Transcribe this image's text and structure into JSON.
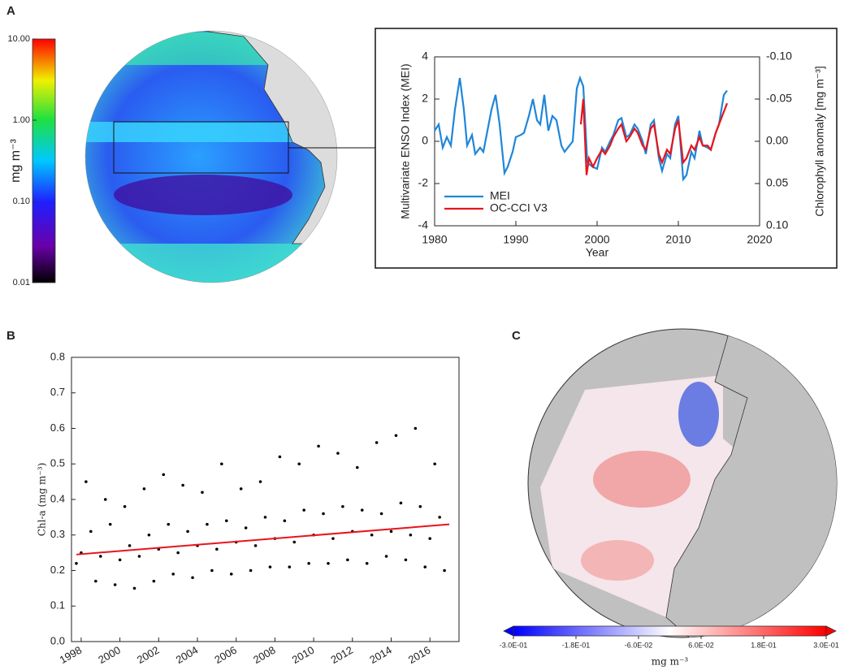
{
  "chart_data": [
    {
      "type": "colorbar",
      "panel": "A",
      "orientation": "vertical",
      "log": true,
      "label": "mg m⁻³",
      "lim": [
        0.01,
        10
      ],
      "ticks": [
        {
          "value": 10,
          "label": "10.00"
        },
        {
          "value": 1,
          "label": "1.00"
        },
        {
          "value": 0.1,
          "label": "0.10"
        },
        {
          "value": 0.01,
          "label": "0.01"
        }
      ]
    },
    {
      "type": "line",
      "xlabel": "Year",
      "ylabel": "Multivariate ENSO Index (MEI)",
      "y2label": "Chlorophyll anomaly [mg m⁻³]",
      "xlim": [
        1980,
        2020
      ],
      "xticks": [
        1980,
        1990,
        2000,
        2010,
        2020
      ],
      "ylim": [
        -4,
        4
      ],
      "yticks": [
        -4,
        -2,
        0,
        2,
        4
      ],
      "y2lim": [
        0.1,
        -0.1
      ],
      "y2ticks": [
        {
          "value": -0.1,
          "label": "-0.10"
        },
        {
          "value": -0.05,
          "label": "-0.05"
        },
        {
          "value": 0,
          "label": "0.00"
        },
        {
          "value": 0.05,
          "label": "0.05"
        },
        {
          "value": 0.1,
          "label": "0.10"
        }
      ],
      "legend": "lower left",
      "series": [
        {
          "name": "MEI",
          "color": "#1f86d9",
          "x": [
            1980,
            1980.5,
            1981,
            1981.5,
            1982,
            1982.5,
            1983.1,
            1983.6,
            1984,
            1984.6,
            1985,
            1985.6,
            1986,
            1986.5,
            1987,
            1987.5,
            1988,
            1988.6,
            1989,
            1989.6,
            1990,
            1990.6,
            1991,
            1991.6,
            1992.1,
            1992.6,
            1993,
            1993.5,
            1994,
            1994.5,
            1995,
            1995.6,
            1996,
            1996.6,
            1997,
            1997.5,
            1997.9,
            1998.3,
            1998.8,
            1999.4,
            2000,
            2000.6,
            2001,
            2001.6,
            2002,
            2002.6,
            2003,
            2003.6,
            2004,
            2004.6,
            2005,
            2005.6,
            2006,
            2006.6,
            2007,
            2007.6,
            2008,
            2008.6,
            2009,
            2009.6,
            2010,
            2010.6,
            2011,
            2011.6,
            2012,
            2012.6,
            2013,
            2013.6,
            2014,
            2014.6,
            2015,
            2015.6,
            2016
          ],
          "values": [
            0.5,
            0.8,
            -0.3,
            0.2,
            -0.2,
            1.5,
            3.0,
            1.5,
            -0.2,
            0.3,
            -0.6,
            -0.3,
            -0.5,
            0.5,
            1.5,
            2.2,
            0.8,
            -1.5,
            -1.2,
            -0.5,
            0.2,
            0.3,
            0.4,
            1.2,
            2.0,
            1.0,
            0.8,
            2.2,
            0.5,
            1.2,
            1.0,
            -0.2,
            -0.5,
            -0.2,
            0.0,
            2.5,
            3.0,
            2.6,
            -1.0,
            -1.2,
            -1.3,
            -0.3,
            -0.5,
            0.0,
            0.3,
            1.0,
            1.1,
            0.2,
            0.3,
            0.8,
            0.6,
            0.0,
            -0.6,
            0.8,
            1.0,
            -0.8,
            -1.4,
            -0.6,
            -0.8,
            0.8,
            1.2,
            -1.8,
            -1.6,
            -0.5,
            -0.8,
            0.5,
            -0.2,
            -0.3,
            -0.4,
            0.4,
            0.8,
            2.2,
            2.4
          ]
        },
        {
          "name": "OC-CCI V3",
          "color": "#e8141c",
          "axis": "y2",
          "x": [
            1998.0,
            1998.3,
            1998.7,
            1999.0,
            1999.5,
            2000,
            2000.6,
            2001,
            2001.6,
            2002,
            2002.6,
            2003,
            2003.6,
            2004,
            2004.6,
            2005,
            2005.6,
            2006,
            2006.6,
            2007,
            2007.6,
            2008,
            2008.6,
            2009,
            2009.6,
            2010,
            2010.6,
            2011,
            2011.6,
            2012,
            2012.6,
            2013,
            2013.6,
            2014,
            2014.6,
            2015,
            2015.6,
            2016
          ],
          "values": [
            -0.02,
            -0.05,
            0.04,
            0.02,
            0.03,
            0.02,
            0.01,
            0.015,
            0.005,
            -0.005,
            -0.015,
            -0.02,
            0.0,
            -0.005,
            -0.015,
            -0.01,
            0.005,
            0.01,
            -0.015,
            -0.02,
            0.015,
            0.025,
            0.01,
            0.015,
            -0.015,
            -0.025,
            0.025,
            0.02,
            0.005,
            0.01,
            -0.005,
            0.005,
            0.005,
            0.01,
            -0.01,
            -0.02,
            -0.035,
            -0.045
          ]
        }
      ]
    },
    {
      "type": "scatter",
      "panel": "B",
      "ylabel": "Chl-a (mg m⁻³)",
      "color": "#000000",
      "xlim": [
        1997.5,
        2017.5
      ],
      "xticks": [
        1998,
        2000,
        2002,
        2004,
        2006,
        2008,
        2010,
        2012,
        2014,
        2016
      ],
      "ylim": [
        0,
        0.8
      ],
      "yticks": [
        {
          "value": 0,
          "label": "0.0"
        },
        0.1,
        0.2,
        0.3,
        0.4,
        0.5,
        0.6,
        0.7,
        0.8
      ],
      "x": [
        1997.75,
        1998,
        1998.25,
        1998.5,
        1998.75,
        1999,
        1999.25,
        1999.5,
        1999.75,
        2000,
        2000.25,
        2000.5,
        2000.75,
        2001,
        2001.25,
        2001.5,
        2001.75,
        2002,
        2002.25,
        2002.5,
        2002.75,
        2003,
        2003.25,
        2003.5,
        2003.75,
        2004,
        2004.25,
        2004.5,
        2004.75,
        2005,
        2005.25,
        2005.5,
        2005.75,
        2006,
        2006.25,
        2006.5,
        2006.75,
        2007,
        2007.25,
        2007.5,
        2007.75,
        2008,
        2008.25,
        2008.5,
        2008.75,
        2009,
        2009.25,
        2009.5,
        2009.75,
        2010,
        2010.25,
        2010.5,
        2010.75,
        2011,
        2011.25,
        2011.5,
        2011.75,
        2012,
        2012.25,
        2012.5,
        2012.75,
        2013,
        2013.25,
        2013.5,
        2013.75,
        2014,
        2014.25,
        2014.5,
        2014.75,
        2015,
        2015.25,
        2015.5,
        2015.75,
        2016,
        2016.25,
        2016.5,
        2016.75
      ],
      "values": [
        0.22,
        0.25,
        0.45,
        0.31,
        0.17,
        0.24,
        0.4,
        0.33,
        0.16,
        0.23,
        0.38,
        0.27,
        0.15,
        0.24,
        0.43,
        0.3,
        0.17,
        0.26,
        0.47,
        0.33,
        0.19,
        0.25,
        0.44,
        0.31,
        0.18,
        0.27,
        0.42,
        0.33,
        0.2,
        0.26,
        0.5,
        0.34,
        0.19,
        0.28,
        0.43,
        0.32,
        0.2,
        0.27,
        0.45,
        0.35,
        0.21,
        0.29,
        0.52,
        0.34,
        0.21,
        0.28,
        0.5,
        0.37,
        0.22,
        0.3,
        0.55,
        0.36,
        0.22,
        0.29,
        0.53,
        0.38,
        0.23,
        0.31,
        0.49,
        0.37,
        0.22,
        0.3,
        0.56,
        0.36,
        0.24,
        0.31,
        0.58,
        0.39,
        0.23,
        0.3,
        0.6,
        0.38,
        0.21,
        0.29,
        0.5,
        0.35,
        0.2
      ],
      "trend": {
        "color": "#e8141c",
        "x": [
          1997.75,
          2017
        ],
        "values": [
          0.245,
          0.33
        ]
      }
    },
    {
      "type": "colorbar",
      "panel": "C",
      "orientation": "horizontal",
      "log": false,
      "label": "mg m⁻³",
      "lim": [
        -0.3,
        0.3
      ],
      "ticks": [
        {
          "value": -0.3,
          "label": "-3.0E-01"
        },
        {
          "value": -0.18,
          "label": "-1.8E-01"
        },
        {
          "value": -0.06,
          "label": "-6.0E-02"
        },
        {
          "value": 0.06,
          "label": "6.0E-02"
        },
        {
          "value": 0.18,
          "label": "1.8E-01"
        },
        {
          "value": 0.3,
          "label": "3.0E-01"
        }
      ]
    }
  ]
}
